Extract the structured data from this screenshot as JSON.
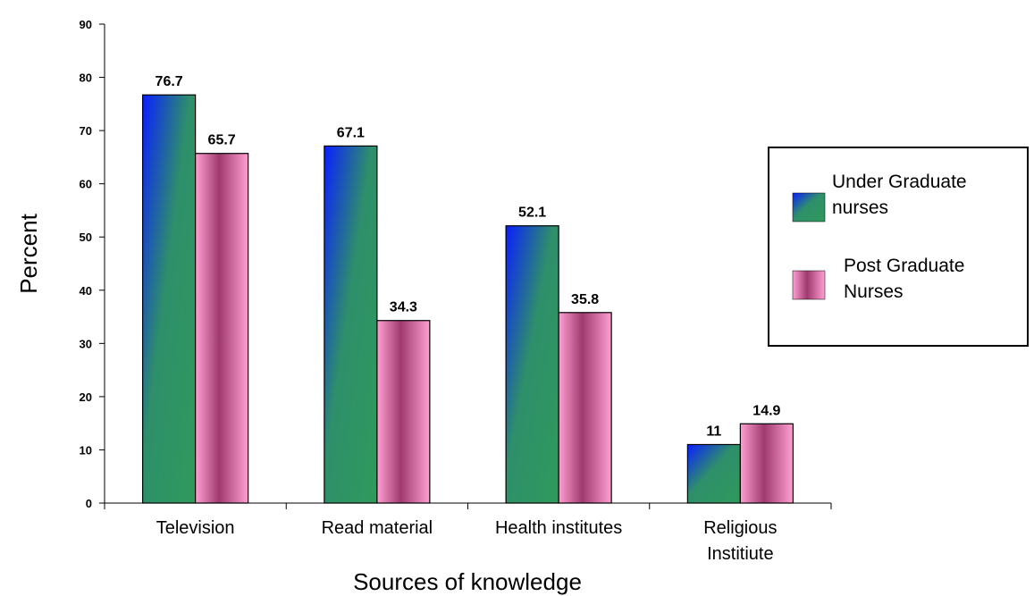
{
  "chart_data": {
    "type": "bar",
    "categories": [
      [
        "Television"
      ],
      [
        "Read material"
      ],
      [
        "Health institutes"
      ],
      [
        "Religious",
        "Institiute"
      ]
    ],
    "series": [
      {
        "name": "Under Graduate nurses",
        "legend_lines": [
          "Under Graduate",
          "nurses"
        ],
        "values": [
          76.7,
          67.1,
          52.1,
          11
        ],
        "labels": [
          "76.7",
          "67.1",
          "52.1",
          "11"
        ]
      },
      {
        "name": "Post Graduate Nurses",
        "legend_lines": [
          "Post Graduate",
          "Nurses"
        ],
        "values": [
          65.7,
          34.3,
          35.8,
          14.9
        ],
        "labels": [
          "65.7",
          "34.3",
          "35.8",
          "14.9"
        ]
      }
    ],
    "xlabel": "Sources of knowledge",
    "ylabel": "Percent",
    "ylim": [
      0,
      90
    ],
    "yticks": [
      0,
      10,
      20,
      30,
      40,
      50,
      60,
      70,
      80,
      90
    ],
    "grid": false,
    "legend_position": "right",
    "colors": {
      "series1": [
        "#0a1fff",
        "#2e8f6a",
        "#2f9a5c"
      ],
      "series2": [
        "#ff9fd2",
        "#a03a6e",
        "#ff9fd2"
      ]
    }
  }
}
